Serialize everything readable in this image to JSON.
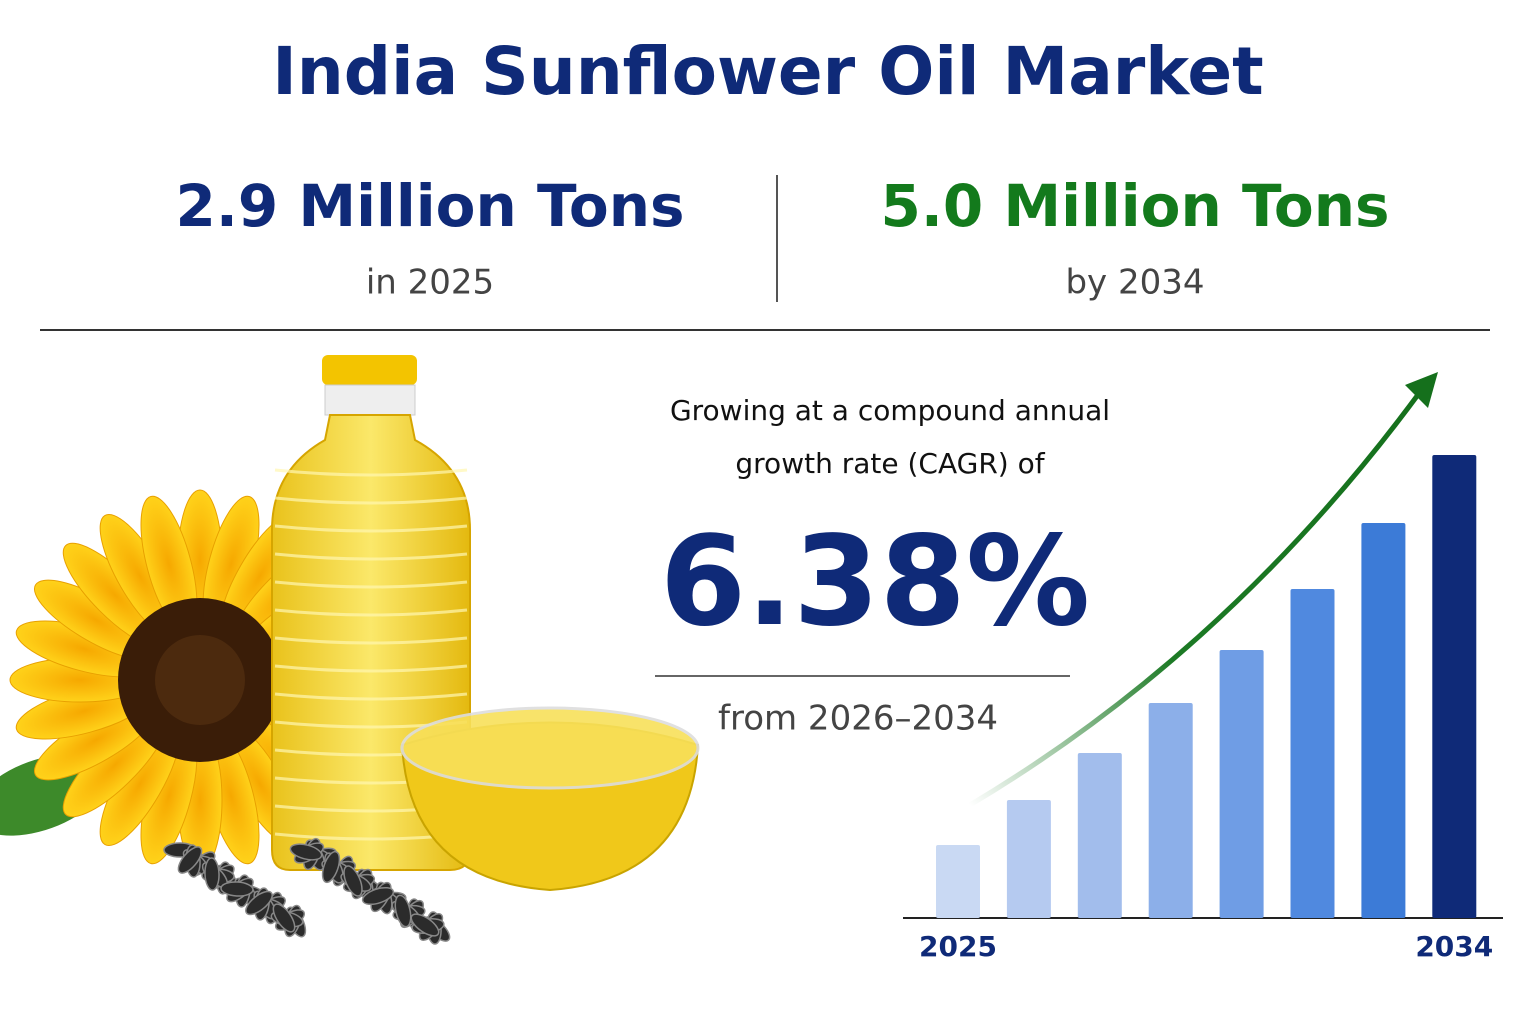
{
  "header": {
    "title": "India Sunflower Oil Market"
  },
  "stats": [
    {
      "value": "2.9 Million Tons",
      "label": "in 2025"
    },
    {
      "value": "5.0 Million Tons",
      "label": "by 2034"
    }
  ],
  "cagr": {
    "intro_line1": "Growing at a compound annual",
    "intro_line2": "growth rate (CAGR) of",
    "value": "6.38%",
    "period": "from 2026–2034"
  },
  "chart_data": {
    "type": "bar",
    "categories": [
      "2025",
      null,
      null,
      null,
      null,
      null,
      null,
      "2034"
    ],
    "values": [
      73,
      118,
      165,
      215,
      268,
      329,
      395,
      463
    ],
    "colors": [
      "#c9d9f3",
      "#b5caf0",
      "#a2bdec",
      "#8cafe9",
      "#6f9de5",
      "#5089df",
      "#3c7bd7",
      "#0f2a78"
    ],
    "ylim": [
      0,
      500
    ]
  }
}
